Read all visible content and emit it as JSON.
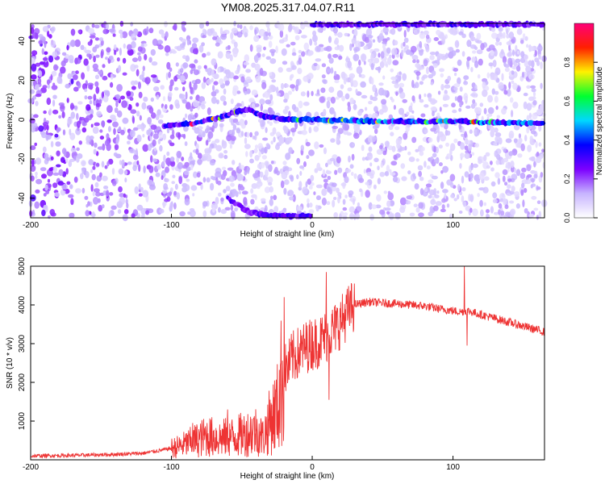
{
  "title": "YM08.2025.317.04.07.R11",
  "chart_data": [
    {
      "type": "heatmap",
      "title": "YM08.2025.317.04.07.R11",
      "xlabel": "Height of straight line (km)",
      "ylabel": "Frequency (Hz)",
      "xlim": [
        -200,
        165
      ],
      "ylim": [
        -50,
        49
      ],
      "x_ticks": [
        "-200",
        "-100",
        "0",
        "100"
      ],
      "y_ticks": [
        "40",
        "20",
        "0",
        "-20",
        "-40"
      ],
      "colorbar": {
        "label": "Normalized spectral amplitude",
        "range": [
          0,
          1
        ],
        "ticks": [
          "0.0",
          "0.2",
          "0.4",
          "0.6",
          "0.8"
        ],
        "colors": [
          "#ffffff",
          "#c7b4ff",
          "#7b00ff",
          "#0000ff",
          "#00d8ff",
          "#00ff30",
          "#fff200",
          "#ff2000",
          "#ff0078"
        ]
      },
      "features": [
        {
          "name": "carrier",
          "points": [
            [
              -105,
              -3
            ],
            [
              -85,
              -2
            ],
            [
              -65,
              1
            ],
            [
              -55,
              4
            ],
            [
              -45,
              5
            ],
            [
              -35,
              2
            ],
            [
              -20,
              0
            ],
            [
              0,
              0
            ],
            [
              50,
              -1
            ],
            [
              100,
              -1
            ],
            [
              165,
              -2
            ]
          ]
        },
        {
          "name": "upper-edge",
          "points": [
            [
              0,
              48.5
            ],
            [
              165,
              48.5
            ]
          ]
        },
        {
          "name": "lower-branch",
          "points": [
            [
              -60,
              -40
            ],
            [
              -45,
              -47
            ],
            [
              -30,
              -49
            ],
            [
              0,
              -49
            ]
          ]
        }
      ],
      "grid": false
    },
    {
      "type": "line",
      "xlabel": "Height of straight line (km)",
      "ylabel": "SNR (10 * v/v)",
      "xlim": [
        -200,
        165
      ],
      "ylim": [
        0,
        5000
      ],
      "x_ticks": [
        "-200",
        "-100",
        "0",
        "100"
      ],
      "y_ticks": [
        "5000",
        "4000",
        "3000",
        "2000",
        "1000"
      ],
      "color": "#ee3333",
      "series": [
        {
          "x": [
            -200,
            -180,
            -160,
            -140,
            -120,
            -105,
            -95,
            -85,
            -75,
            -65,
            -55,
            -45,
            -40,
            -35,
            -30,
            -25,
            -22,
            -20,
            -18,
            -15,
            -10,
            -5,
            0,
            5,
            10,
            15,
            20,
            25,
            30,
            40,
            50,
            60,
            70,
            80,
            90,
            100,
            105,
            110,
            115,
            120,
            130,
            140,
            150,
            165
          ],
          "y": [
            100,
            110,
            120,
            140,
            170,
            260,
            340,
            470,
            610,
            560,
            600,
            700,
            760,
            580,
            1000,
            1300,
            2000,
            2400,
            2300,
            2600,
            2750,
            2900,
            3000,
            3050,
            3200,
            3350,
            3550,
            3800,
            4000,
            4080,
            4050,
            4030,
            4000,
            3970,
            3900,
            3850,
            3820,
            3850,
            3800,
            3750,
            3650,
            3550,
            3450,
            3300
          ],
          "spikes": [
            [
              -20,
              4200
            ],
            [
              10,
              4850
            ],
            [
              108,
              5000
            ],
            [
              110,
              2950
            ],
            [
              12,
              1550
            ],
            [
              -60,
              1300
            ],
            [
              -85,
              950
            ]
          ]
        }
      ]
    }
  ]
}
